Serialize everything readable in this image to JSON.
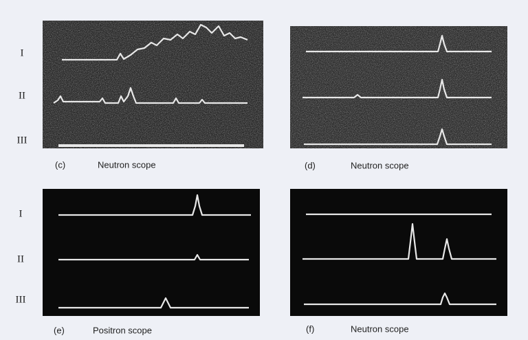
{
  "row_labels": {
    "top": [
      "I",
      "II",
      "III"
    ],
    "bottom": [
      "I",
      "II",
      "III"
    ]
  },
  "panels": [
    {
      "label": "(c)",
      "caption": "Neutron scope"
    },
    {
      "label": "(d)",
      "caption": "Neutron scope"
    },
    {
      "label": "(e)",
      "caption": "Positron scope"
    },
    {
      "label": "(f)",
      "caption": "Neutron scope"
    }
  ]
}
